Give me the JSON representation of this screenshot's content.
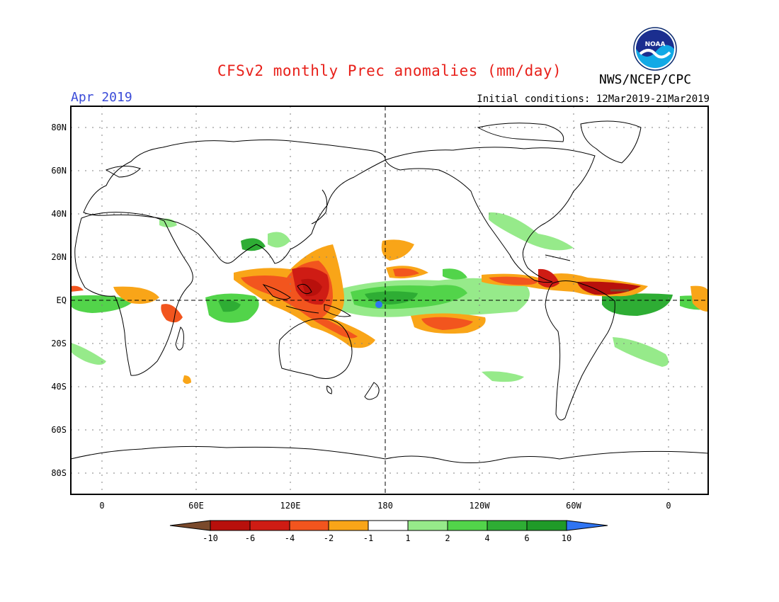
{
  "header": {
    "title": "CFSv2 monthly Prec anomalies (mm/day)",
    "agency": "NWS/NCEP/CPC",
    "forecast_month": "Apr 2019",
    "initial_conditions": "Initial conditions: 12Mar2019-21Mar2019",
    "logo_text": "NOAA",
    "logo_icon": "noaa-logo-icon"
  },
  "axes": {
    "lat_labels": [
      "80N",
      "60N",
      "40N",
      "20N",
      "EQ",
      "20S",
      "40S",
      "60S",
      "80S"
    ],
    "lon_labels": [
      "0",
      "60E",
      "120E",
      "180",
      "120W",
      "60W",
      "0"
    ]
  },
  "colorbar": {
    "labels": [
      "-10",
      "-6",
      "-4",
      "-2",
      "-1",
      "1",
      "2",
      "4",
      "6",
      "10"
    ],
    "colors": [
      "#7a4a2c",
      "#b8100c",
      "#cf1c14",
      "#f2551e",
      "#f9a518",
      "#ffffff",
      "#96ea8a",
      "#52d44a",
      "#2ead34",
      "#1f9a28",
      "#2f74f2"
    ]
  },
  "colors": {
    "title": "#e8201a",
    "month": "#3a4bd8"
  }
}
